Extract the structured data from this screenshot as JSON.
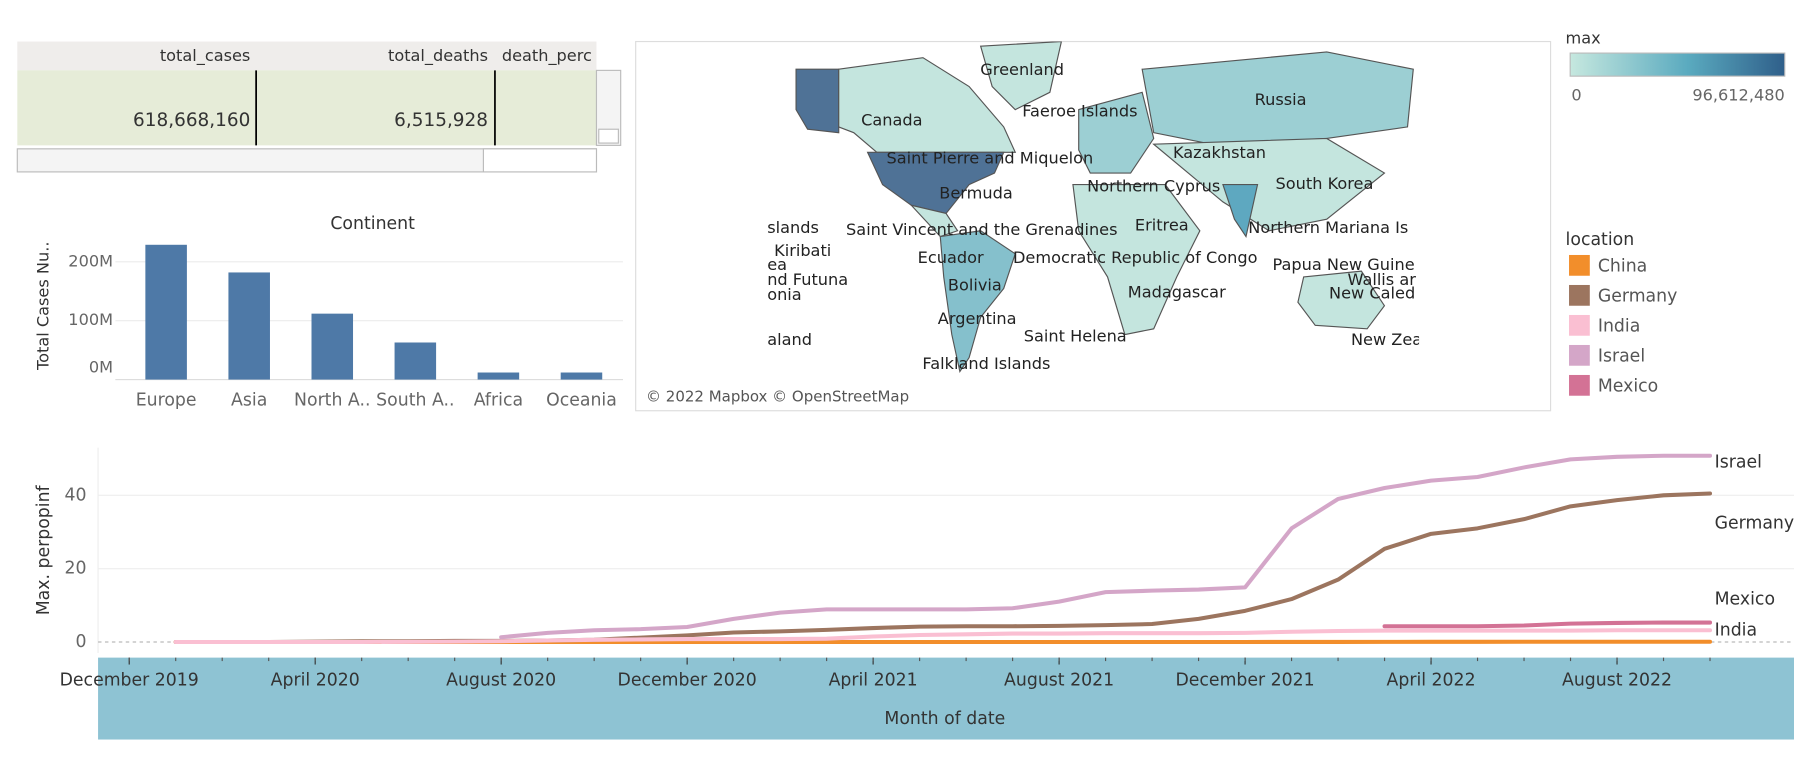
{
  "table": {
    "headers": [
      "total_cases",
      "total_deaths",
      "death_perc"
    ],
    "rows": [
      [
        "618,668,160",
        "6,515,928"
      ]
    ]
  },
  "chart_data": [
    {
      "type": "bar",
      "title": "Continent",
      "y_label": "Total Cases Nu..",
      "categories": [
        "Europe",
        "Asia",
        "North A..",
        "South A..",
        "Africa",
        "Oceania"
      ],
      "values": [
        229000000,
        182000000,
        112000000,
        63000000,
        12000000,
        12000000
      ],
      "color": "#4e79a7",
      "ylim": [
        0,
        245000000
      ],
      "yticks": [
        {
          "value": 0,
          "label": "0M"
        },
        {
          "value": 100000000,
          "label": "100M"
        },
        {
          "value": 200000000,
          "label": "200M"
        }
      ],
      "grid": true
    },
    {
      "type": "map",
      "labels": [
        "Greenland",
        "Canada",
        "Faeroe Islands",
        "Russia",
        "Saint Pierre and Miquelon",
        "Kazakhstan",
        "Bermuda",
        "Northern Cyprus",
        "South Korea",
        "slands",
        "Saint Vincent and the Grenadines",
        "Eritrea",
        "Northern Mariana Is",
        "Kiribati",
        "Ecuador",
        "Democratic Republic of Congo",
        "Papua New Guine",
        "ea",
        "Wallis ar",
        "nd Futuna",
        "Bolivia",
        "Madagascar",
        "New Caled",
        "onia",
        "Argentina",
        "Saint Helena",
        "aland",
        "New Zea",
        "Falkland Islands"
      ],
      "attribution": "© 2022 Mapbox © OpenStreetMap",
      "colorscale": {
        "title": "max",
        "colors": [
          "#c6e8df",
          "#2f5f8a"
        ],
        "lim": [
          0,
          96612480
        ],
        "ticks": [
          0,
          {
            "value": 96612480,
            "label": "96,612,480"
          }
        ]
      }
    },
    {
      "type": "line",
      "y_label": "Max. perpopinf",
      "x_label": "Month of date",
      "legend_title": "location",
      "x": [
        "December 2019",
        "January 2020",
        "February 2020",
        "March 2020",
        "April 2020",
        "May 2020",
        "June 2020",
        "July 2020",
        "August 2020",
        "September 2020",
        "October 2020",
        "November 2020",
        "December 2020",
        "January 2021",
        "February 2021",
        "March 2021",
        "April 2021",
        "May 2021",
        "June 2021",
        "July 2021",
        "August 2021",
        "September 2021",
        "October 2021",
        "November 2021",
        "December 2021",
        "January 2022",
        "February 2022",
        "March 2022",
        "April 2022",
        "May 2022",
        "June 2022",
        "July 2022",
        "August 2022",
        "September 2022",
        "October 2022"
      ],
      "xticks": [
        "December 2019",
        "April 2020",
        "August 2020",
        "December 2020",
        "April 2021",
        "August 2021",
        "December 2021",
        "April 2022",
        "August 2022"
      ],
      "ylim": [
        -3,
        53
      ],
      "yticks": [
        0,
        20,
        40
      ],
      "grid": true,
      "series": [
        {
          "name": "China",
          "color": "#f28e2b",
          "end_label": false,
          "values": [
            null,
            0.01,
            0.01,
            0.01,
            0.01,
            0.01,
            0.01,
            0.01,
            0.01,
            0.01,
            0.01,
            0.01,
            0.01,
            0.01,
            0.01,
            0.01,
            0.01,
            0.01,
            0.01,
            0.01,
            0.01,
            0.01,
            0.01,
            0.01,
            0.01,
            0.02,
            0.02,
            0.03,
            0.05,
            0.05,
            0.06,
            0.06,
            0.07,
            0.07,
            0.07
          ]
        },
        {
          "name": "Germany",
          "color": "#9c755f",
          "end_label": true,
          "values": [
            null,
            0,
            0,
            0.01,
            0.1,
            0.2,
            0.2,
            0.3,
            0.3,
            0.4,
            0.6,
            1.2,
            1.8,
            2.6,
            2.9,
            3.3,
            3.8,
            4.2,
            4.3,
            4.3,
            4.4,
            4.6,
            4.9,
            6.3,
            8.5,
            11.7,
            17,
            25.4,
            29.5,
            31,
            33.5,
            37,
            38.7,
            40,
            40.5
          ]
        },
        {
          "name": "India",
          "color": "#fabfd2",
          "end_label": true,
          "values": [
            null,
            0,
            0,
            0,
            0,
            0.01,
            0.04,
            0.1,
            0.2,
            0.4,
            0.6,
            0.7,
            0.8,
            0.8,
            0.8,
            0.9,
            1.5,
            1.9,
            2.1,
            2.3,
            2.3,
            2.4,
            2.4,
            2.4,
            2.5,
            2.8,
            3.0,
            3.1,
            3.1,
            3.1,
            3.1,
            3.1,
            3.2,
            3.2,
            3.2
          ]
        },
        {
          "name": "Israel",
          "color": "#d4a6c8",
          "end_label": true,
          "values": [
            null,
            null,
            null,
            null,
            null,
            null,
            null,
            null,
            1.3,
            2.5,
            3.2,
            3.5,
            4.1,
            6.3,
            8,
            8.9,
            8.9,
            8.9,
            8.9,
            9.2,
            11,
            13.6,
            14,
            14.3,
            14.9,
            31,
            39,
            42,
            44,
            45,
            47.6,
            49.8,
            50.5,
            50.8,
            50.8
          ]
        },
        {
          "name": "Mexico",
          "color": "#d37295",
          "end_label": true,
          "values": [
            null,
            null,
            null,
            null,
            null,
            null,
            null,
            null,
            null,
            null,
            null,
            null,
            null,
            null,
            null,
            null,
            null,
            null,
            null,
            null,
            null,
            null,
            null,
            null,
            null,
            null,
            null,
            4.3,
            4.3,
            4.3,
            4.5,
            5.0,
            5.2,
            5.3,
            5.3
          ]
        }
      ]
    }
  ]
}
